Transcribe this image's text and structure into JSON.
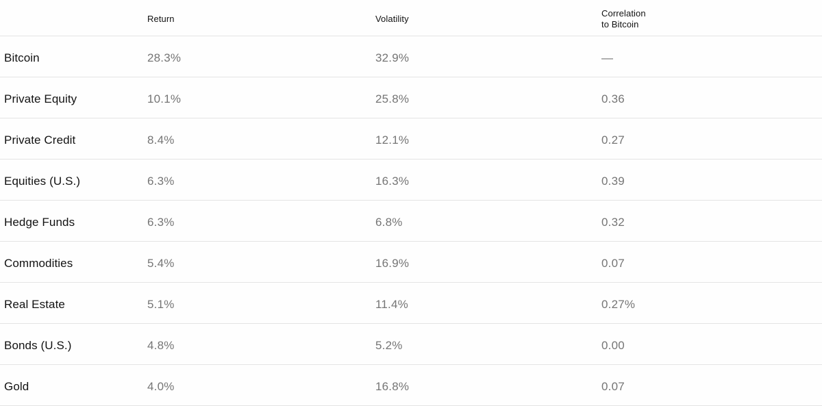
{
  "chart_data": {
    "type": "table",
    "title": "",
    "columns": [
      {
        "label": ""
      },
      {
        "label": "Return"
      },
      {
        "label": "Volatility"
      },
      {
        "label": "Correlation\nto Bitcoin"
      }
    ],
    "rows": [
      {
        "label": "Bitcoin",
        "values": [
          "28.3%",
          "32.9%",
          "—"
        ]
      },
      {
        "label": "Private Equity",
        "values": [
          "10.1%",
          "25.8%",
          "0.36"
        ]
      },
      {
        "label": "Private Credit",
        "values": [
          "8.4%",
          "12.1%",
          "0.27"
        ]
      },
      {
        "label": "Equities (U.S.)",
        "values": [
          "6.3%",
          "16.3%",
          "0.39"
        ]
      },
      {
        "label": "Hedge Funds",
        "values": [
          "6.3%",
          "6.8%",
          "0.32"
        ]
      },
      {
        "label": "Commodities",
        "values": [
          "5.4%",
          "16.9%",
          "0.07"
        ]
      },
      {
        "label": "Real Estate",
        "values": [
          "5.1%",
          "11.4%",
          "0.27%"
        ]
      },
      {
        "label": "Bonds (U.S.)",
        "values": [
          "4.8%",
          "5.2%",
          "0.00"
        ]
      },
      {
        "label": "Gold",
        "values": [
          "4.0%",
          "16.8%",
          "0.07"
        ]
      }
    ]
  },
  "colors": {
    "background": "#fefefe",
    "header_text": "#111111",
    "label_text": "#121212",
    "value_text": "#757575",
    "divider": "#e4e4e4"
  }
}
